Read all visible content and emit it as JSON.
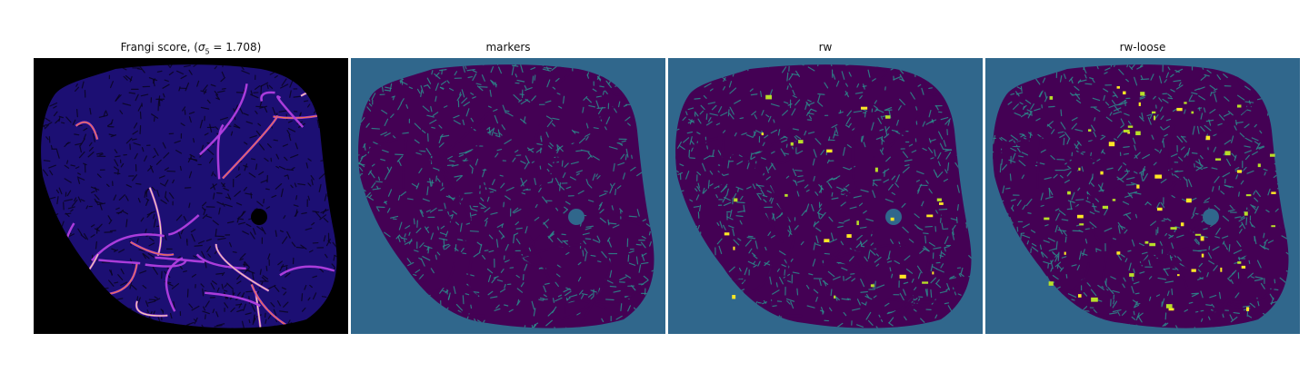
{
  "panels": [
    {
      "id": "frangi",
      "title_prefix": "Frangi score, (",
      "title_sigma": "σ",
      "title_sub": "5",
      "title_suffix": " = 1.708)",
      "colormap": "magma",
      "colors": {
        "background": "#000000",
        "base": "#1c0f73",
        "accent1": "#b23fe0",
        "accent2": "#f47a34",
        "accent3": "#fde9a6"
      }
    },
    {
      "id": "markers",
      "title": "markers",
      "colormap": "viridis",
      "colors": {
        "background": "#30678c",
        "base": "#440154",
        "accent1": "#2c8c8c",
        "accent2": "#3a4f8a",
        "accent3": "#30678c"
      }
    },
    {
      "id": "rw",
      "title": "rw",
      "colormap": "viridis",
      "colors": {
        "background": "#30678c",
        "base": "#440154",
        "accent1": "#2c8c8c",
        "accent2": "#b8de29",
        "accent3": "#fde725"
      }
    },
    {
      "id": "rw-loose",
      "title": "rw-loose",
      "colormap": "viridis",
      "colors": {
        "background": "#30678c",
        "base": "#440154",
        "accent1": "#2c8c8c",
        "accent2": "#b8de29",
        "accent3": "#fde725"
      }
    }
  ]
}
